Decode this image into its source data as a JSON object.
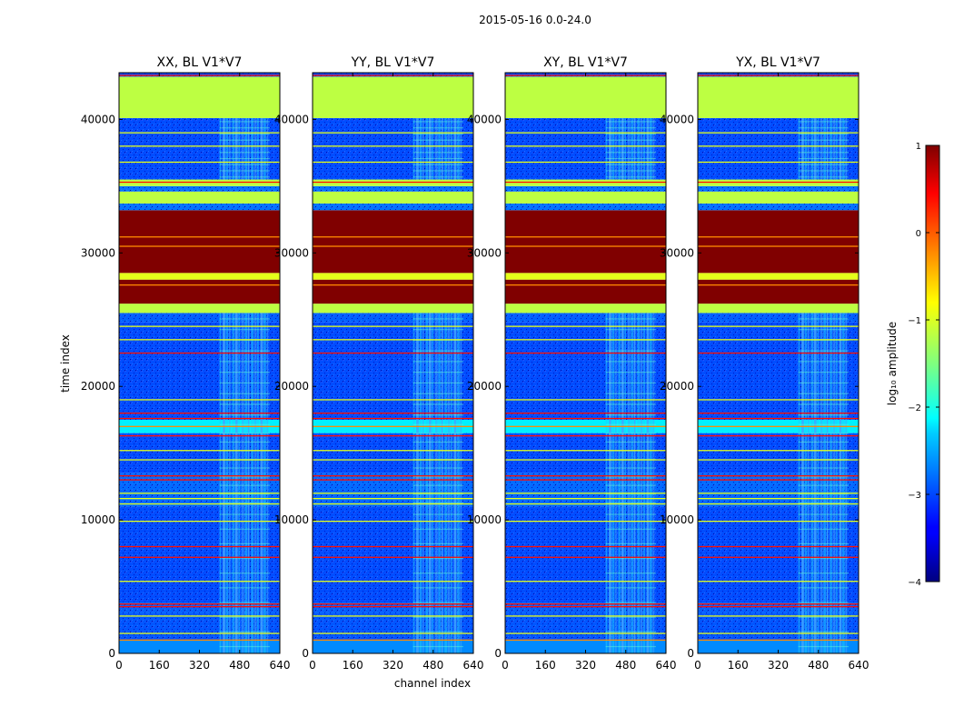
{
  "chart_data": {
    "type": "heatmap",
    "suptitle": "2015-05-16 0.0-24.0",
    "xlabel": "channel index",
    "ylabel": "time index",
    "xlim": [
      0,
      640
    ],
    "ylim": [
      0,
      43500
    ],
    "xticks": [
      0,
      160,
      320,
      480,
      640
    ],
    "yticks": [
      0,
      10000,
      20000,
      30000,
      40000
    ],
    "panels": [
      {
        "title": "XX, BL V1*V7"
      },
      {
        "title": "YY, BL V1*V7"
      },
      {
        "title": "XY, BL V1*V7"
      },
      {
        "title": "YX, BL V1*V7"
      }
    ],
    "colorbar": {
      "label": "log₁₀ amplitude",
      "range": [
        -4,
        1
      ],
      "ticks": [
        1,
        0,
        -1,
        -2,
        -3,
        -4
      ],
      "tick_labels": [
        "1",
        "0",
        "−1",
        "−2",
        "−3",
        "−4"
      ],
      "colormap": "jet"
    },
    "bands": [
      {
        "t0": 0,
        "t1": 1000,
        "value": -2.7
      },
      {
        "t0": 1000,
        "t1": 3000,
        "value": -2.95
      },
      {
        "t0": 3000,
        "t1": 3800,
        "value": -2.9
      },
      {
        "t0": 3800,
        "t1": 11000,
        "value": -3.0
      },
      {
        "t0": 11000,
        "t1": 13500,
        "value": -2.85
      },
      {
        "t0": 13500,
        "t1": 16500,
        "value": -3.0
      },
      {
        "t0": 16500,
        "t1": 17500,
        "value": -2.2
      },
      {
        "t0": 17500,
        "t1": 24800,
        "value": -3.0
      },
      {
        "t0": 24800,
        "t1": 25500,
        "value": -2.9
      },
      {
        "t0": 25500,
        "t1": 26200,
        "value": -1.2
      },
      {
        "t0": 26200,
        "t1": 28000,
        "value": 1.0
      },
      {
        "t0": 28000,
        "t1": 28500,
        "value": -1.0
      },
      {
        "t0": 28500,
        "t1": 33200,
        "value": 1.0
      },
      {
        "t0": 33200,
        "t1": 33700,
        "value": -2.8
      },
      {
        "t0": 33700,
        "t1": 34600,
        "value": -1.2
      },
      {
        "t0": 34600,
        "t1": 35000,
        "value": -2.8
      },
      {
        "t0": 35000,
        "t1": 35500,
        "value": -1.2
      },
      {
        "t0": 35500,
        "t1": 40100,
        "value": -3.0
      },
      {
        "t0": 40100,
        "t1": 43200,
        "value": -1.2
      },
      {
        "t0": 43200,
        "t1": 43500,
        "value": -3.0
      }
    ],
    "bright_channels": [
      400,
      600
    ],
    "flag_lines": [
      {
        "t": 1000,
        "value": -0.3
      },
      {
        "t": 1500,
        "value": -1.0
      },
      {
        "t": 2800,
        "value": -1.0
      },
      {
        "t": 3500,
        "value": 0.3
      },
      {
        "t": 3700,
        "value": 0.3
      },
      {
        "t": 5400,
        "value": -1.0
      },
      {
        "t": 7200,
        "value": 0.3
      },
      {
        "t": 8000,
        "value": 0.3
      },
      {
        "t": 9900,
        "value": -1.0
      },
      {
        "t": 11200,
        "value": -1.0
      },
      {
        "t": 11600,
        "value": -1.0
      },
      {
        "t": 12000,
        "value": -1.0
      },
      {
        "t": 13000,
        "value": 0.3
      },
      {
        "t": 13300,
        "value": 0.3
      },
      {
        "t": 14500,
        "value": -1.0
      },
      {
        "t": 15200,
        "value": -1.0
      },
      {
        "t": 16300,
        "value": 0.3
      },
      {
        "t": 17000,
        "value": -0.3
      },
      {
        "t": 17600,
        "value": 0.3
      },
      {
        "t": 18000,
        "value": 0.3
      },
      {
        "t": 19000,
        "value": -1.0
      },
      {
        "t": 22500,
        "value": 0.3
      },
      {
        "t": 23500,
        "value": -1.0
      },
      {
        "t": 24500,
        "value": -1.0
      },
      {
        "t": 27600,
        "value": -0.3
      },
      {
        "t": 30500,
        "value": -0.3
      },
      {
        "t": 31200,
        "value": -0.3
      },
      {
        "t": 35300,
        "value": 0.3
      },
      {
        "t": 36800,
        "value": -1.0
      },
      {
        "t": 38000,
        "value": -1.0
      },
      {
        "t": 39000,
        "value": -1.0
      },
      {
        "t": 43300,
        "value": 0.3
      }
    ]
  }
}
